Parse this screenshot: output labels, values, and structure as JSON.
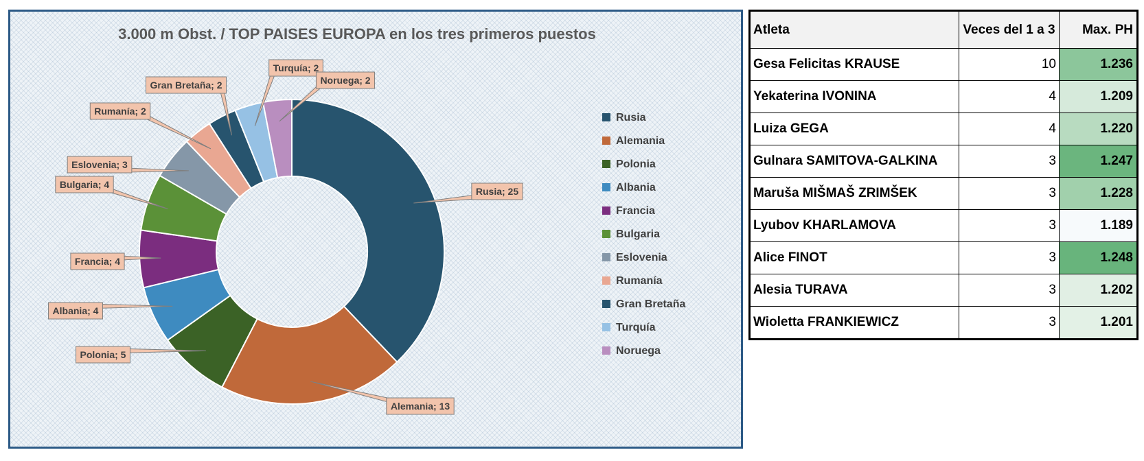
{
  "chart_data": {
    "type": "pie",
    "title": "3.000 m Obst. / TOP  PAISES EUROPA en los tres primeros puestos",
    "categories": [
      "Rusia",
      "Alemania",
      "Polonia",
      "Albania",
      "Francia",
      "Bulgaria",
      "Eslovenia",
      "Rumanía",
      "Gran Bretaña",
      "Turquía",
      "Noruega"
    ],
    "values": [
      25,
      13,
      5,
      4,
      4,
      4,
      3,
      2,
      2,
      2,
      2
    ],
    "colors": [
      "#27546e",
      "#c0693a",
      "#3b6226",
      "#3e8bc0",
      "#7b2d7f",
      "#5b9138",
      "#8597a8",
      "#e9a792",
      "#27546e",
      "#96c1e4",
      "#b98ebf"
    ],
    "data_labels": [
      "Rusia; 25",
      "Alemania; 13",
      "Polonia; 5",
      "Albania; 4",
      "Francia; 4",
      "Bulgaria; 4",
      "Eslovenia; 3",
      "Rumanía; 2",
      "Gran Bretaña; 2",
      "Turquía; 2",
      "Noruega; 2"
    ],
    "legend_position": "right",
    "style": "doughnut"
  },
  "table": {
    "headers": [
      "Atleta",
      "Veces del 1 a 3",
      "Max. PH"
    ],
    "rows": [
      {
        "name": "Gesa Felicitas KRAUSE",
        "veces": "10",
        "ph": "1.236",
        "ph_color": "#8cc69b"
      },
      {
        "name": "Yekaterina IVONINA",
        "veces": "4",
        "ph": "1.209",
        "ph_color": "#d6eadb"
      },
      {
        "name": "Luiza GEGA",
        "veces": "4",
        "ph": "1.220",
        "ph_color": "#b8dbc0"
      },
      {
        "name": "Gulnara SAMITOVA-GALKINA",
        "veces": "3",
        "ph": "1.247",
        "ph_color": "#6bb57e"
      },
      {
        "name": "Maruša MIŠMAŠ ZRIMŠEK",
        "veces": "3",
        "ph": "1.228",
        "ph_color": "#a1d0ac"
      },
      {
        "name": "Lyubov KHARLAMOVA",
        "veces": "3",
        "ph": "1.189",
        "ph_color": "#f7fafc"
      },
      {
        "name": "Alice FINOT",
        "veces": "3",
        "ph": "1.248",
        "ph_color": "#68b47c"
      },
      {
        "name": "Alesia TURAVA",
        "veces": "3",
        "ph": "1.202",
        "ph_color": "#e1efe4"
      },
      {
        "name": "Wioletta FRANKIEWICZ",
        "veces": "3",
        "ph": "1.201",
        "ph_color": "#e3f1e6"
      }
    ]
  }
}
